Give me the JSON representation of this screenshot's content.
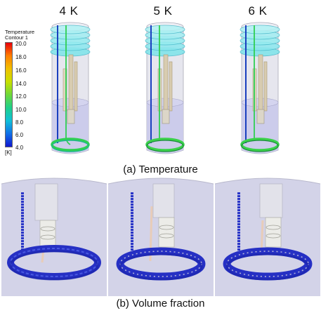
{
  "top_row": {
    "column_titles": [
      "4 K",
      "5 K",
      "6 K"
    ],
    "caption": "(a) Temperature"
  },
  "legend": {
    "title_line1": "Temperature",
    "title_line2": "Contour 1",
    "ticks": [
      "20.0",
      "18.0",
      "16.0",
      "14.0",
      "12.0",
      "10.0",
      "8.0",
      "6.0",
      "4.0"
    ],
    "unit": "[K]",
    "colors": [
      "#e8000b",
      "#ff7f00",
      "#f0c000",
      "#c8e000",
      "#6ed83a",
      "#1fd08a",
      "#10c0d8",
      "#1070e8",
      "#1018d0"
    ]
  },
  "bottom_row": {
    "caption": "(b) Volume fraction"
  },
  "colors": {
    "vessel_fill": "#dcdce6",
    "liquid_fill": "#c9c9ea",
    "disk_fill": "#6fe0e8",
    "coil_cold": "#1a3fbf",
    "coil_green": "#2fcf52"
  }
}
